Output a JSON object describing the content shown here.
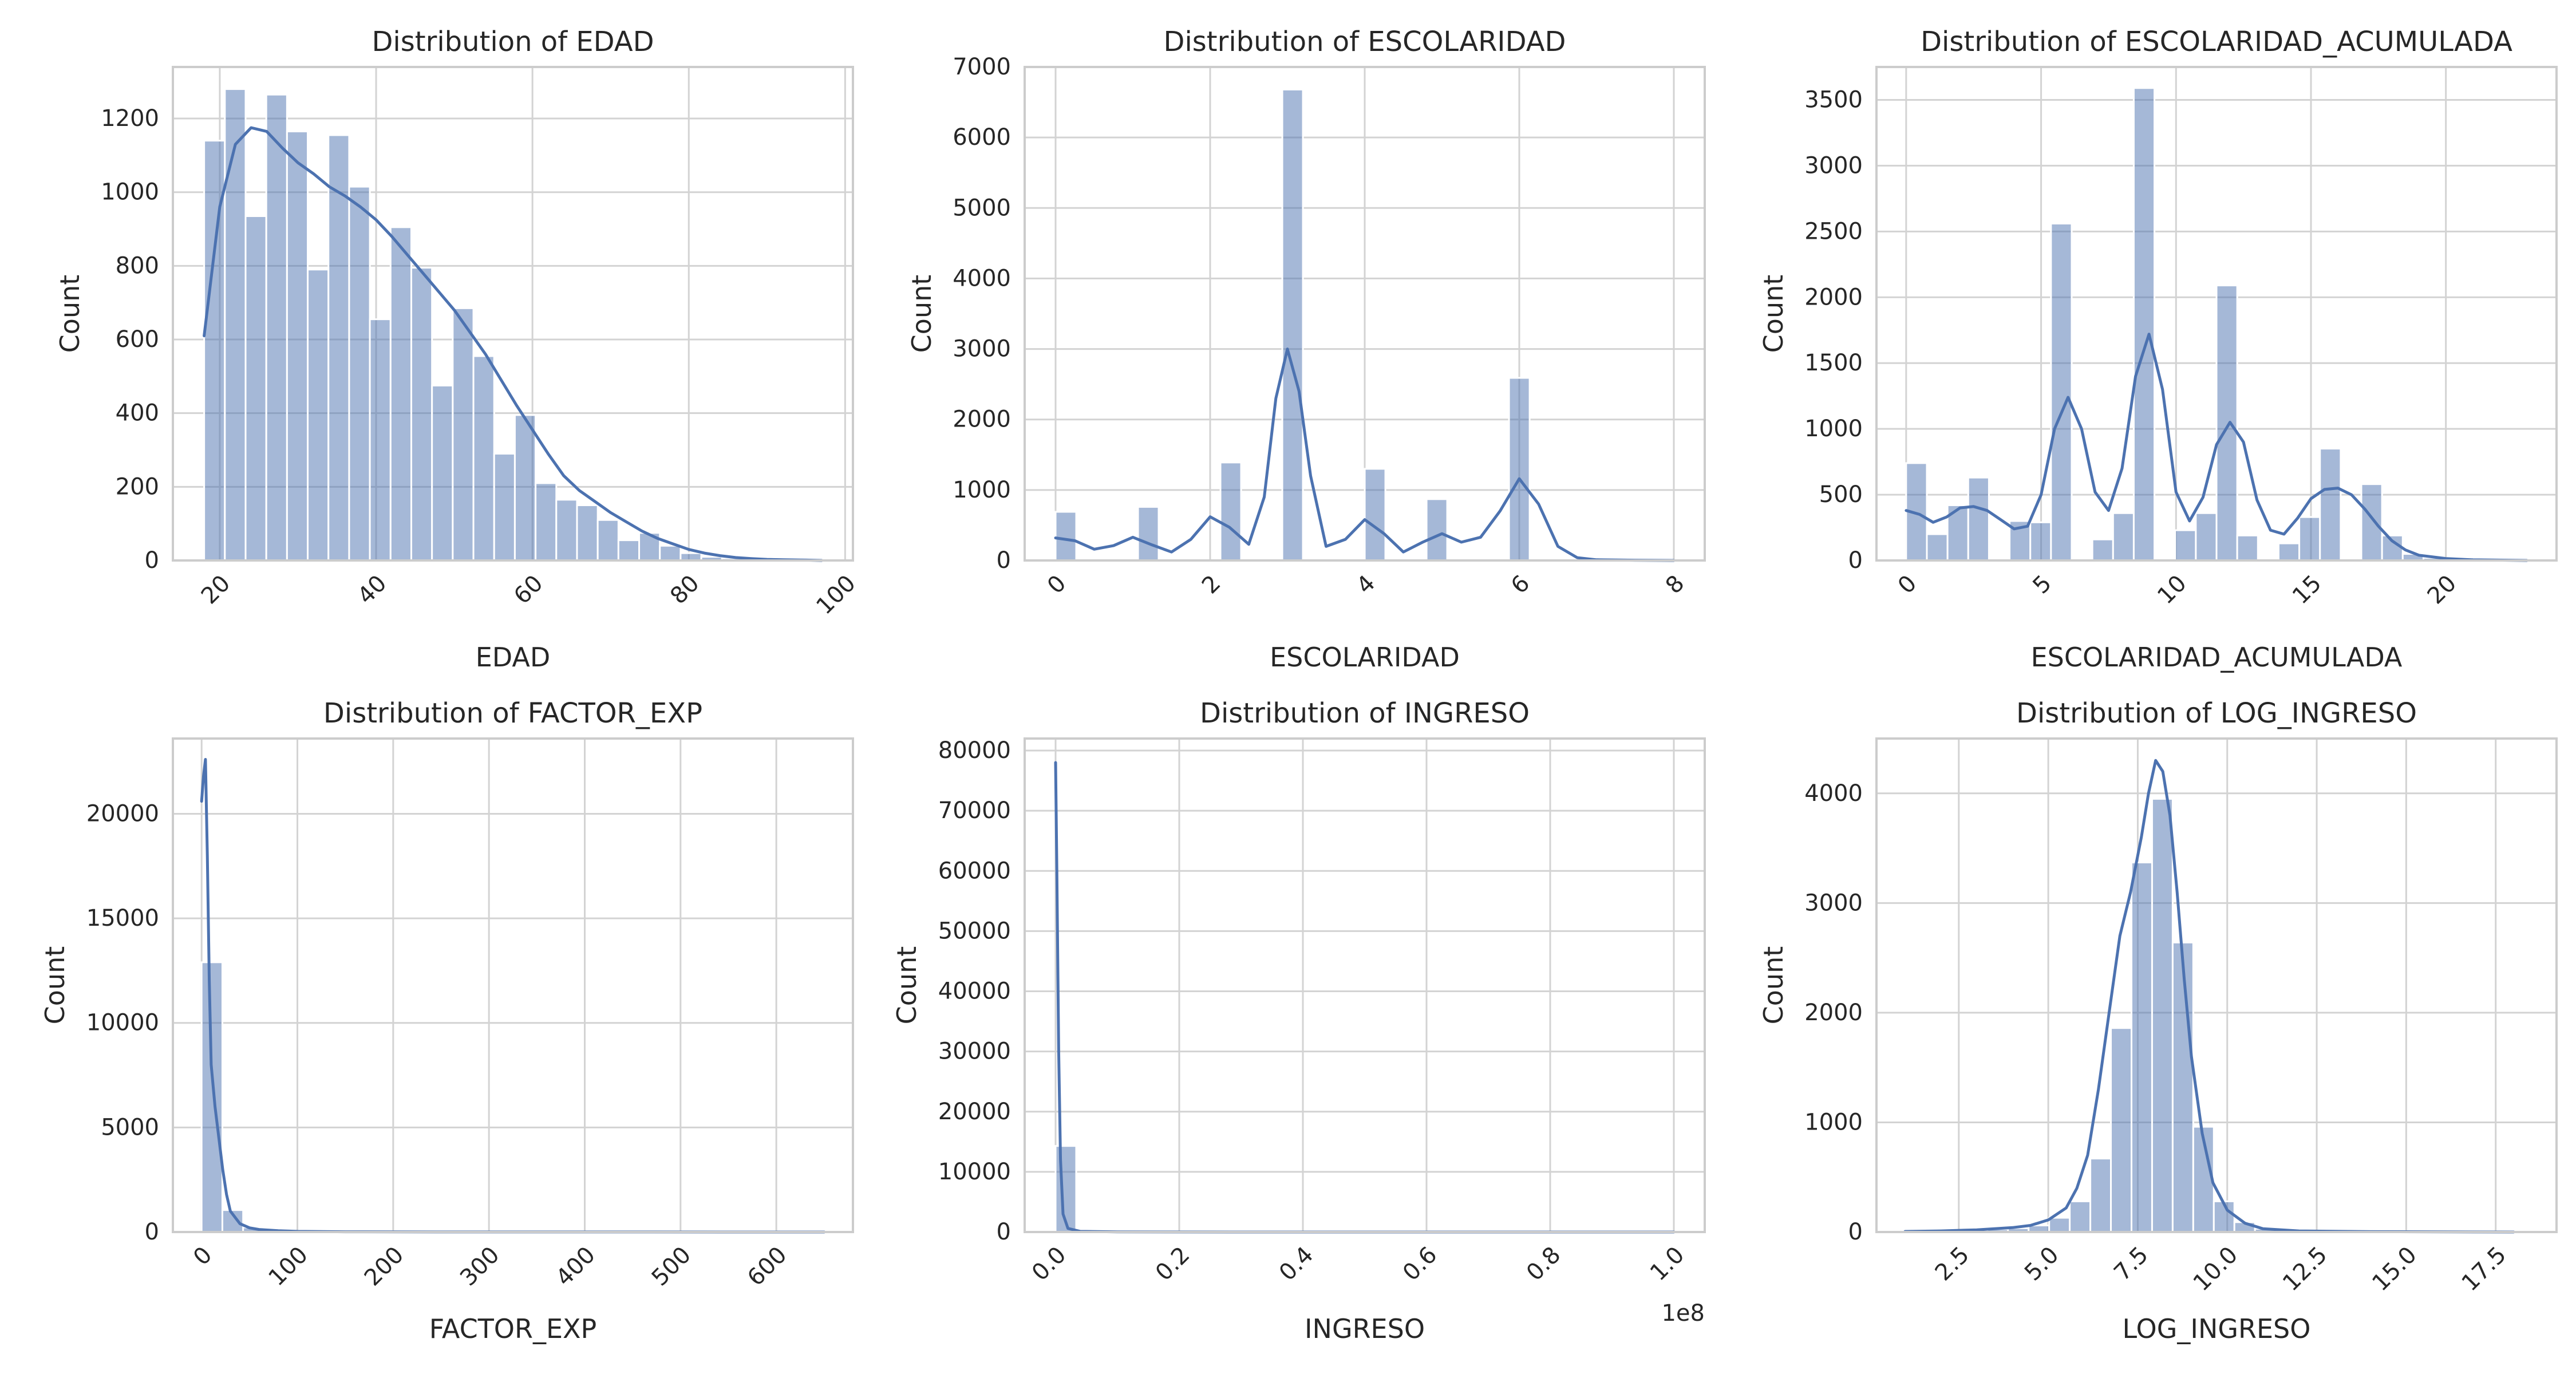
{
  "chart_data": [
    {
      "type": "histogram",
      "title": "Distribution of EDAD",
      "xlabel": "EDAD",
      "ylabel": "Count",
      "xlim": [
        14,
        101
      ],
      "ylim": [
        0,
        1340
      ],
      "xticks": [
        20,
        40,
        60,
        80,
        100
      ],
      "yticks": [
        0,
        200,
        400,
        600,
        800,
        1000,
        1200
      ],
      "xtick_rotation": 45,
      "grid": true,
      "bins": {
        "start": 18,
        "width": 2.65,
        "counts": [
          1140,
          1280,
          935,
          1265,
          1165,
          790,
          1155,
          1015,
          655,
          905,
          795,
          475,
          685,
          555,
          290,
          395,
          210,
          165,
          150,
          110,
          55,
          75,
          40,
          20,
          10,
          6,
          4,
          3,
          2,
          1
        ]
      },
      "kde": {
        "x": [
          18,
          20,
          22,
          24,
          26,
          28,
          30,
          32,
          34,
          36,
          38,
          40,
          42,
          44,
          46,
          48,
          50,
          52,
          54,
          56,
          58,
          60,
          62,
          64,
          66,
          68,
          70,
          72,
          74,
          76,
          78,
          80,
          82,
          84,
          86,
          88,
          90,
          92,
          95,
          97
        ],
        "y": [
          610,
          960,
          1130,
          1175,
          1165,
          1120,
          1080,
          1050,
          1015,
          990,
          960,
          925,
          880,
          830,
          780,
          730,
          680,
          620,
          560,
          490,
          420,
          355,
          290,
          230,
          190,
          160,
          130,
          105,
          80,
          60,
          45,
          30,
          20,
          13,
          8,
          5,
          3,
          2,
          1,
          0
        ]
      }
    },
    {
      "type": "histogram",
      "title": "Distribution of ESCOLARIDAD",
      "xlabel": "ESCOLARIDAD",
      "ylabel": "Count",
      "xlim": [
        -0.4,
        8.4
      ],
      "ylim": [
        0,
        7000
      ],
      "xticks": [
        0,
        2,
        4,
        6,
        8
      ],
      "yticks": [
        0,
        1000,
        2000,
        3000,
        4000,
        5000,
        6000,
        7000
      ],
      "xtick_rotation": 45,
      "grid": true,
      "bins": {
        "start": 0,
        "width": 0.2667,
        "counts": [
          690,
          0,
          0,
          0,
          760,
          0,
          0,
          0,
          1390,
          0,
          0,
          6680,
          0,
          0,
          0,
          1300,
          0,
          0,
          870,
          0,
          0,
          0,
          2590,
          0,
          0,
          0,
          0,
          0,
          0,
          0
        ]
      },
      "kde": {
        "x": [
          0,
          0.25,
          0.5,
          0.75,
          1,
          1.25,
          1.5,
          1.75,
          2,
          2.25,
          2.5,
          2.7,
          2.85,
          3,
          3.15,
          3.3,
          3.5,
          3.75,
          4,
          4.25,
          4.5,
          4.75,
          5,
          5.25,
          5.5,
          5.75,
          6,
          6.25,
          6.5,
          6.75,
          7,
          7.5,
          8
        ],
        "y": [
          320,
          280,
          160,
          210,
          330,
          220,
          120,
          300,
          620,
          470,
          230,
          900,
          2300,
          3000,
          2400,
          1200,
          200,
          300,
          580,
          380,
          120,
          260,
          380,
          260,
          330,
          700,
          1160,
          800,
          200,
          40,
          10,
          3,
          0
        ]
      }
    },
    {
      "type": "histogram",
      "title": "Distribution of ESCOLARIDAD_ACUMULADA",
      "xlabel": "ESCOLARIDAD_ACUMULADA",
      "ylabel": "Count",
      "xlim": [
        -1.1,
        24.1
      ],
      "ylim": [
        0,
        3750
      ],
      "xticks": [
        0,
        5,
        10,
        15,
        20
      ],
      "yticks": [
        0,
        500,
        1000,
        1500,
        2000,
        2500,
        3000,
        3500
      ],
      "xtick_rotation": 45,
      "grid": true,
      "bins": {
        "start": 0,
        "width": 0.7667,
        "counts": [
          740,
          200,
          420,
          630,
          0,
          300,
          290,
          2560,
          0,
          160,
          360,
          3590,
          0,
          230,
          360,
          2090,
          190,
          0,
          130,
          330,
          850,
          0,
          580,
          190,
          50,
          20,
          10,
          5,
          3,
          2
        ]
      },
      "kde": {
        "x": [
          0,
          0.5,
          1,
          1.5,
          2,
          2.5,
          3,
          3.5,
          4,
          4.5,
          5,
          5.5,
          6,
          6.5,
          7,
          7.5,
          8,
          8.5,
          9,
          9.5,
          10,
          10.5,
          11,
          11.5,
          12,
          12.5,
          13,
          13.5,
          14,
          14.5,
          15,
          15.5,
          16,
          16.5,
          17,
          17.5,
          18,
          18.5,
          19,
          20,
          21,
          23
        ],
        "y": [
          380,
          350,
          290,
          330,
          400,
          410,
          380,
          310,
          240,
          260,
          500,
          1000,
          1240,
          1000,
          520,
          380,
          700,
          1400,
          1720,
          1300,
          520,
          300,
          480,
          880,
          1050,
          900,
          460,
          230,
          200,
          320,
          470,
          540,
          550,
          500,
          390,
          260,
          150,
          80,
          40,
          15,
          5,
          0
        ]
      }
    },
    {
      "type": "histogram",
      "title": "Distribution of FACTOR_EXP",
      "xlabel": "FACTOR_EXP",
      "ylabel": "Count",
      "xlim": [
        -30,
        680
      ],
      "ylim": [
        0,
        23600
      ],
      "xticks": [
        0,
        100,
        200,
        300,
        400,
        500,
        600
      ],
      "yticks": [
        0,
        5000,
        10000,
        15000,
        20000
      ],
      "xtick_rotation": 45,
      "grid": true,
      "bins": {
        "start": 0,
        "width": 21.67,
        "counts": [
          12900,
          1050,
          220,
          90,
          50,
          30,
          20,
          15,
          12,
          10,
          8,
          6,
          5,
          4,
          3,
          3,
          2,
          2,
          2,
          1,
          1,
          1,
          1,
          1,
          1,
          1,
          1,
          0,
          0,
          1
        ]
      },
      "kde": {
        "x": [
          0,
          2,
          4,
          6,
          8,
          10,
          14,
          18,
          22,
          26,
          30,
          40,
          50,
          60,
          80,
          100,
          150,
          250,
          400,
          650
        ],
        "y": [
          20600,
          21800,
          22600,
          18000,
          12000,
          8000,
          6000,
          4500,
          3000,
          1800,
          1000,
          400,
          200,
          120,
          60,
          30,
          10,
          4,
          2,
          0
        ]
      }
    },
    {
      "type": "histogram",
      "title": "Distribution of INGRESO",
      "xlabel": "INGRESO",
      "ylabel": "Count",
      "axis_offset": "1e8",
      "xlim": [
        -0.05,
        1.05
      ],
      "ylim": [
        0,
        82000
      ],
      "xticks": [
        0.0,
        0.2,
        0.4,
        0.6,
        0.8,
        1.0
      ],
      "xtick_labels": [
        "0.0",
        "0.2",
        "0.4",
        "0.6",
        "0.8",
        "1.0"
      ],
      "yticks": [
        0,
        10000,
        20000,
        30000,
        40000,
        50000,
        60000,
        70000,
        80000
      ],
      "xtick_rotation": 45,
      "grid": true,
      "bins": {
        "start": 0,
        "width": 0.0333,
        "counts": [
          14300,
          6,
          3,
          2,
          1,
          1,
          1,
          0,
          0,
          0,
          0,
          0,
          0,
          0,
          0,
          0,
          0,
          0,
          0,
          0,
          0,
          0,
          0,
          0,
          0,
          0,
          0,
          0,
          0,
          1
        ]
      },
      "kde": {
        "x": [
          0.0,
          0.002,
          0.005,
          0.008,
          0.012,
          0.02,
          0.04,
          0.1,
          0.3,
          1.0
        ],
        "y": [
          78000,
          60000,
          30000,
          12000,
          3000,
          600,
          100,
          20,
          3,
          0
        ]
      }
    },
    {
      "type": "histogram",
      "title": "Distribution of LOG_INGRESO",
      "xlabel": "LOG_INGRESO",
      "ylabel": "Count",
      "xlim": [
        0.2,
        19.2
      ],
      "ylim": [
        0,
        4500
      ],
      "xticks": [
        2.5,
        5.0,
        7.5,
        10.0,
        12.5,
        15.0,
        17.5
      ],
      "xtick_labels": [
        "2.5",
        "5.0",
        "7.5",
        "10.0",
        "12.5",
        "15.0",
        "17.5"
      ],
      "yticks": [
        0,
        1000,
        2000,
        3000,
        4000
      ],
      "xtick_rotation": 45,
      "grid": true,
      "bins": {
        "start": 1.0,
        "width": 0.575,
        "counts": [
          5,
          8,
          12,
          18,
          25,
          35,
          60,
          130,
          280,
          670,
          1860,
          3370,
          3950,
          2640,
          960,
          280,
          90,
          30,
          15,
          8,
          5,
          3,
          2,
          2,
          1,
          1,
          1,
          1,
          1,
          1
        ]
      },
      "kde": {
        "x": [
          1,
          2,
          3,
          4,
          4.5,
          5,
          5.5,
          5.8,
          6.1,
          6.4,
          6.7,
          7.0,
          7.3,
          7.6,
          7.8,
          8.0,
          8.2,
          8.4,
          8.6,
          8.8,
          9.0,
          9.3,
          9.6,
          10,
          10.5,
          11,
          12,
          14,
          18
        ],
        "y": [
          5,
          10,
          20,
          40,
          60,
          110,
          220,
          400,
          700,
          1300,
          2000,
          2700,
          3100,
          3600,
          4000,
          4300,
          4200,
          3800,
          3100,
          2300,
          1600,
          900,
          450,
          200,
          80,
          30,
          10,
          3,
          0
        ]
      }
    }
  ]
}
